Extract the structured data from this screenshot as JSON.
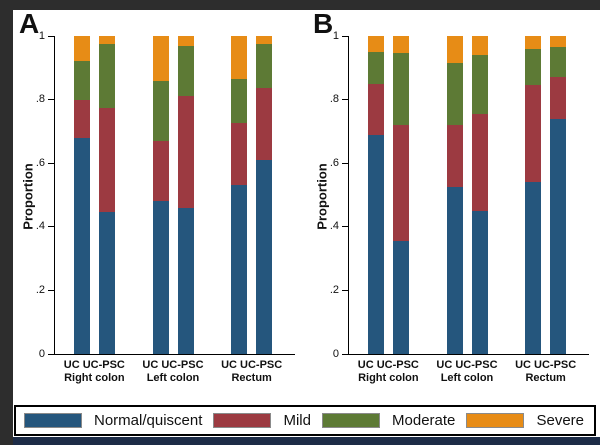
{
  "figure": {
    "ylabel": "Proportion"
  },
  "colors": {
    "frame": "#2d2d2d",
    "bottom_strip": "#1d2c47",
    "plot_background": "#ffffff",
    "axis": "#000000",
    "navy": "#25567d",
    "maroon": "#9c3a41",
    "olive_green": "#5d7a35",
    "orange": "#e78c16"
  },
  "legend": {
    "items": [
      {
        "label": "Normal/quiscent",
        "color": "#25567d"
      },
      {
        "label": "Mild",
        "color": "#9c3a41"
      },
      {
        "label": "Moderate",
        "color": "#5d7a35"
      },
      {
        "label": "Severe",
        "color": "#e78c16"
      }
    ]
  },
  "chart_data": [
    {
      "type": "bar",
      "stacked": true,
      "panel": "A",
      "ylabel": "Proportion",
      "ylim": [
        0,
        1
      ],
      "yticks": [
        "0",
        ".2",
        ".4",
        ".6",
        ".8",
        "1"
      ],
      "grid": false,
      "legend_position": "bottom",
      "groups": [
        "Right colon",
        "Left colon",
        "Rectum"
      ],
      "bar_labels": [
        "UC",
        "UC-PSC"
      ],
      "bars": [
        "UC Right colon",
        "UC-PSC Right colon",
        "UC Left colon",
        "UC-PSC Left colon",
        "UC Rectum",
        "UC-PSC Rectum"
      ],
      "series": [
        {
          "name": "Normal/quiscent",
          "color": "#25567d",
          "values": [
            0.68,
            0.445,
            0.48,
            0.46,
            0.53,
            0.61
          ]
        },
        {
          "name": "Mild",
          "color": "#9c3a41",
          "values": [
            0.12,
            0.33,
            0.19,
            0.35,
            0.195,
            0.225
          ]
        },
        {
          "name": "Moderate",
          "color": "#5d7a35",
          "values": [
            0.12,
            0.2,
            0.19,
            0.16,
            0.14,
            0.14
          ]
        },
        {
          "name": "Severe",
          "color": "#e78c16",
          "values": [
            0.08,
            0.025,
            0.14,
            0.03,
            0.135,
            0.025
          ]
        }
      ]
    },
    {
      "type": "bar",
      "stacked": true,
      "panel": "B",
      "ylabel": "Proportion",
      "ylim": [
        0,
        1
      ],
      "yticks": [
        "0",
        ".2",
        ".4",
        ".6",
        ".8",
        "1"
      ],
      "grid": false,
      "legend_position": "bottom",
      "groups": [
        "Right colon",
        "Left colon",
        "Rectum"
      ],
      "bar_labels": [
        "UC",
        "UC-PSC"
      ],
      "bars": [
        "UC Right colon",
        "UC-PSC Right colon",
        "UC Left colon",
        "UC-PSC Left colon",
        "UC Rectum",
        "UC-PSC Rectum"
      ],
      "series": [
        {
          "name": "Normal/quiscent",
          "color": "#25567d",
          "values": [
            0.69,
            0.355,
            0.525,
            0.45,
            0.54,
            0.74
          ]
        },
        {
          "name": "Mild",
          "color": "#9c3a41",
          "values": [
            0.16,
            0.365,
            0.195,
            0.305,
            0.305,
            0.13
          ]
        },
        {
          "name": "Moderate",
          "color": "#5d7a35",
          "values": [
            0.1,
            0.225,
            0.195,
            0.185,
            0.115,
            0.095
          ]
        },
        {
          "name": "Severe",
          "color": "#e78c16",
          "values": [
            0.05,
            0.055,
            0.085,
            0.06,
            0.04,
            0.035
          ]
        }
      ]
    }
  ]
}
